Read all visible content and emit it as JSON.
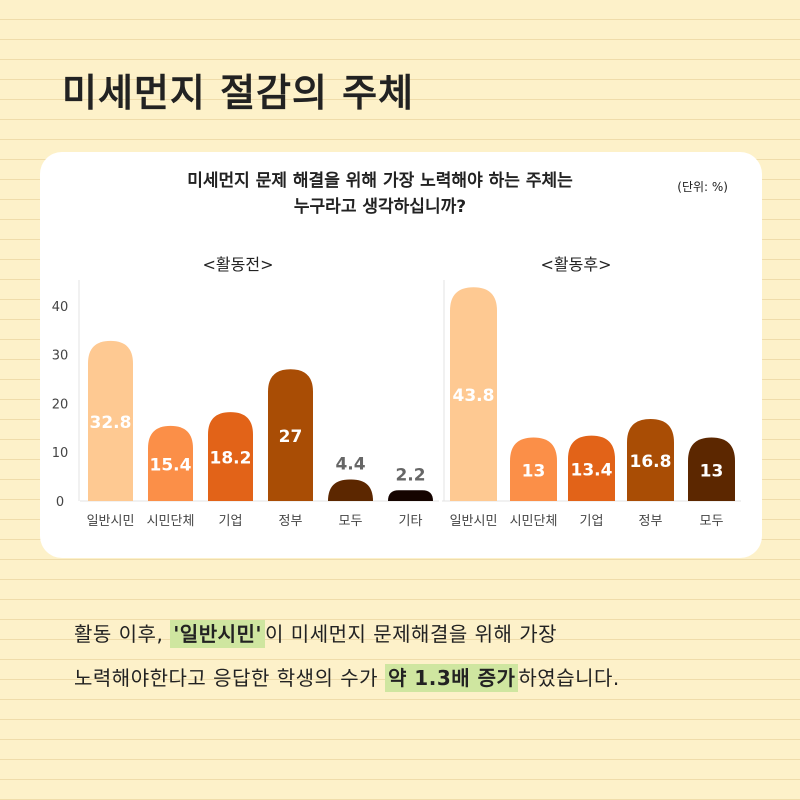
{
  "title": "미세먼지 절감의 주체",
  "question_line1": "미세먼지 문제 해결을 위해 가장 노력해야 하는 주체는",
  "question_line2": "누구라고 생각하십니까?",
  "unit": "(단위: %)",
  "colors": {
    "page_bg": "#fdf1c9",
    "card_bg": "#ffffff",
    "highlight": "#cfe6a0",
    "bar_colors": [
      "#fec992",
      "#fb8f48",
      "#e26318",
      "#a94d05",
      "#5c2700",
      "#150400"
    ]
  },
  "chart_data": [
    {
      "type": "bar",
      "title": "<활동전>",
      "categories": [
        "일반시민",
        "시민단체",
        "기업",
        "정부",
        "모두",
        "기타"
      ],
      "values": [
        32.8,
        15.4,
        18.2,
        27,
        4.4,
        2.2
      ],
      "value_labels": [
        "32.8",
        "15.4",
        "18.2",
        "27",
        "4.4",
        "2.2"
      ],
      "yticks": [
        "0",
        "10",
        "20",
        "30",
        "40"
      ],
      "ylim": [
        0,
        45
      ],
      "grid": false
    },
    {
      "type": "bar",
      "title": "<활동후>",
      "categories": [
        "일반시민",
        "시민단체",
        "기업",
        "정부",
        "모두"
      ],
      "values": [
        43.8,
        13,
        13.4,
        16.8,
        13
      ],
      "value_labels": [
        "43.8",
        "13",
        "13.4",
        "16.8",
        "13"
      ],
      "ylim": [
        0,
        45
      ],
      "grid": false
    }
  ],
  "conclusion": {
    "l1_pre": "활동 이후, ",
    "l1_hl": "'일반시민'",
    "l1_post": "이 미세먼지 문제해결을 위해 가장",
    "l2_pre": "노력해야한다고 응답한 학생의 수가 ",
    "l2_hl": "약 1.3배 증가",
    "l2_post": "하였습니다."
  }
}
